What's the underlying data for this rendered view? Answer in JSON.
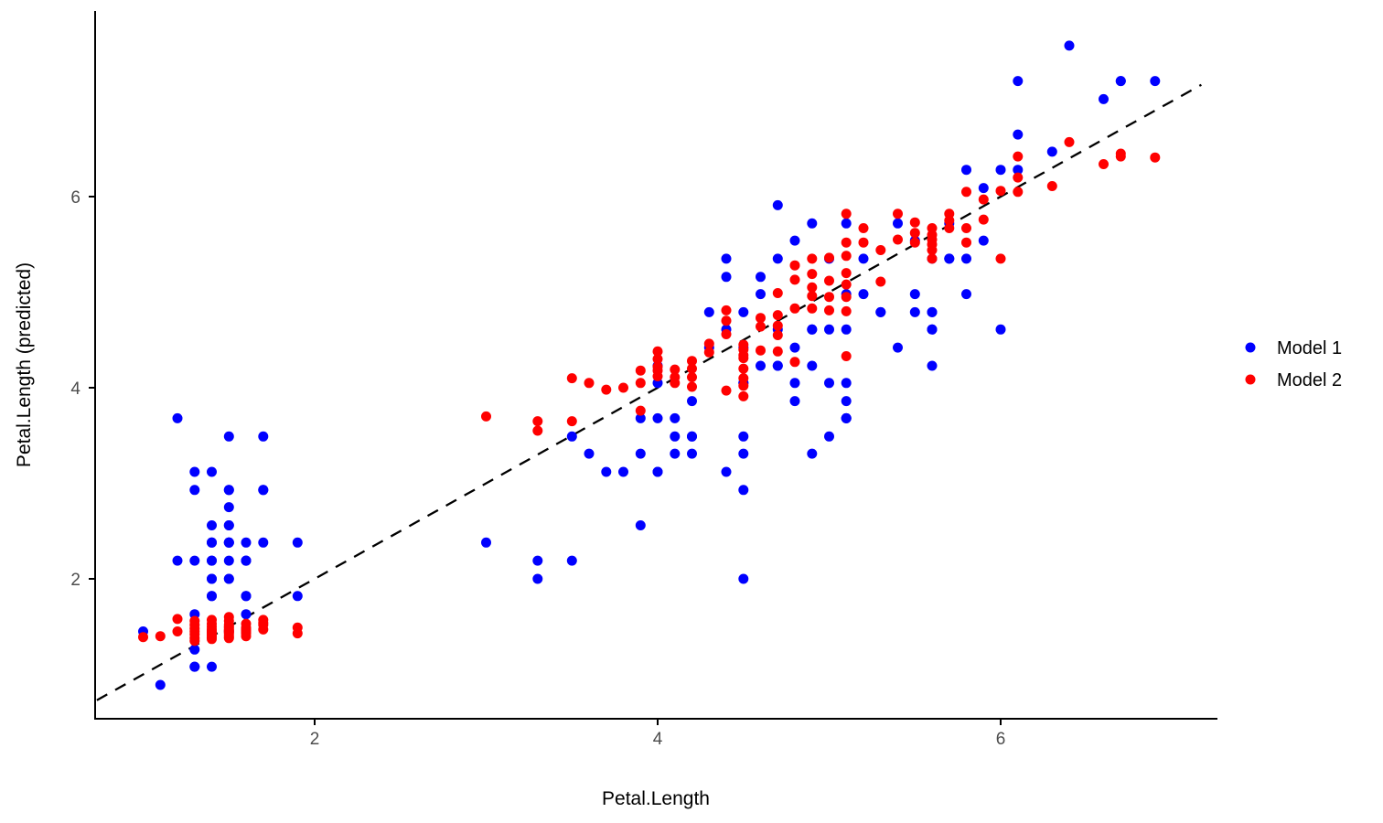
{
  "chart_data": {
    "type": "scatter",
    "title": "",
    "xlabel": "Petal.Length",
    "ylabel": "Petal.Length (predicted)",
    "x_ticks": [
      "2",
      "4",
      "6"
    ],
    "y_ticks": [
      "2",
      "4",
      "6"
    ],
    "x_tick_values": [
      2,
      4,
      6
    ],
    "y_tick_values": [
      2,
      4,
      6
    ],
    "xlim": [
      0.72,
      7.26
    ],
    "ylim": [
      0.55,
      7.95
    ],
    "grid": "off",
    "background": "#ffffff",
    "axis_color": "#000000",
    "tick_label_color": "#4d4d4d",
    "reference_line": {
      "equation": "y = x",
      "style": "dashed",
      "color": "#000000",
      "x_start": 0.73,
      "x_end": 7.17
    },
    "legend": {
      "position": "right",
      "entries": [
        {
          "label": "Model 1",
          "color": "#0000ff"
        },
        {
          "label": "Model 2",
          "color": "#ff0000"
        }
      ]
    },
    "series": [
      {
        "name": "Model 1",
        "color": "#0000ff",
        "points": [
          [
            1.4,
            2.38
          ],
          [
            1.4,
            2.0
          ],
          [
            1.3,
            1.63
          ],
          [
            1.5,
            1.45
          ],
          [
            1.4,
            2.19
          ],
          [
            1.7,
            2.93
          ],
          [
            1.4,
            1.45
          ],
          [
            1.5,
            2.19
          ],
          [
            1.4,
            1.08
          ],
          [
            1.5,
            2.0
          ],
          [
            1.5,
            2.93
          ],
          [
            1.6,
            1.82
          ],
          [
            1.4,
            1.82
          ],
          [
            1.1,
            0.89
          ],
          [
            1.2,
            3.68
          ],
          [
            1.5,
            3.49
          ],
          [
            1.3,
            2.93
          ],
          [
            1.4,
            2.38
          ],
          [
            1.7,
            3.49
          ],
          [
            1.5,
            2.38
          ],
          [
            1.7,
            2.93
          ],
          [
            1.5,
            2.38
          ],
          [
            1.0,
            1.45
          ],
          [
            1.7,
            2.38
          ],
          [
            1.9,
            1.82
          ],
          [
            1.6,
            2.19
          ],
          [
            1.6,
            2.19
          ],
          [
            1.5,
            2.56
          ],
          [
            1.4,
            2.56
          ],
          [
            1.6,
            1.63
          ],
          [
            1.6,
            1.82
          ],
          [
            1.5,
            2.93
          ],
          [
            1.5,
            2.56
          ],
          [
            1.4,
            3.12
          ],
          [
            1.5,
            2.0
          ],
          [
            1.2,
            2.19
          ],
          [
            1.3,
            3.12
          ],
          [
            1.4,
            2.0
          ],
          [
            1.3,
            1.08
          ],
          [
            1.5,
            2.38
          ],
          [
            1.3,
            2.19
          ],
          [
            1.3,
            1.26
          ],
          [
            1.3,
            1.08
          ],
          [
            1.6,
            2.19
          ],
          [
            1.9,
            2.38
          ],
          [
            1.4,
            1.82
          ],
          [
            1.6,
            2.38
          ],
          [
            1.4,
            1.45
          ],
          [
            1.5,
            2.75
          ],
          [
            1.4,
            2.19
          ],
          [
            4.7,
            5.91
          ],
          [
            4.5,
            4.79
          ],
          [
            4.9,
            5.72
          ],
          [
            4.0,
            3.12
          ],
          [
            4.6,
            4.98
          ],
          [
            4.5,
            3.49
          ],
          [
            4.7,
            4.61
          ],
          [
            3.3,
            2.0
          ],
          [
            4.6,
            5.16
          ],
          [
            3.9,
            2.56
          ],
          [
            3.5,
            2.19
          ],
          [
            4.2,
            3.86
          ],
          [
            4.0,
            4.05
          ],
          [
            4.7,
            4.23
          ],
          [
            3.6,
            3.31
          ],
          [
            4.4,
            5.35
          ],
          [
            4.5,
            3.31
          ],
          [
            4.1,
            3.68
          ],
          [
            4.5,
            4.42
          ],
          [
            3.9,
            3.31
          ],
          [
            4.8,
            3.86
          ],
          [
            4.0,
            4.23
          ],
          [
            4.9,
            4.61
          ],
          [
            4.7,
            4.23
          ],
          [
            4.3,
            4.79
          ],
          [
            4.4,
            5.16
          ],
          [
            4.8,
            5.54
          ],
          [
            5.0,
            5.35
          ],
          [
            4.5,
            4.05
          ],
          [
            3.5,
            3.49
          ],
          [
            3.8,
            3.12
          ],
          [
            3.7,
            3.12
          ],
          [
            3.9,
            3.68
          ],
          [
            5.1,
            4.05
          ],
          [
            4.5,
            2.93
          ],
          [
            4.5,
            4.05
          ],
          [
            4.7,
            5.35
          ],
          [
            4.4,
            4.61
          ],
          [
            4.1,
            3.31
          ],
          [
            4.0,
            3.12
          ],
          [
            4.4,
            3.12
          ],
          [
            4.6,
            4.23
          ],
          [
            4.0,
            3.68
          ],
          [
            3.3,
            2.19
          ],
          [
            4.2,
            3.31
          ],
          [
            4.2,
            3.49
          ],
          [
            4.2,
            3.49
          ],
          [
            4.3,
            4.42
          ],
          [
            3.0,
            2.38
          ],
          [
            4.1,
            3.49
          ],
          [
            6.0,
            4.61
          ],
          [
            5.1,
            3.68
          ],
          [
            5.9,
            6.09
          ],
          [
            5.6,
            4.61
          ],
          [
            5.8,
            4.98
          ],
          [
            6.6,
            7.02
          ],
          [
            4.5,
            2.0
          ],
          [
            6.3,
            6.47
          ],
          [
            5.8,
            5.35
          ],
          [
            6.1,
            6.28
          ],
          [
            5.1,
            4.98
          ],
          [
            5.3,
            4.79
          ],
          [
            5.5,
            5.54
          ],
          [
            5.0,
            3.49
          ],
          [
            5.1,
            3.68
          ],
          [
            5.3,
            4.79
          ],
          [
            5.5,
            4.98
          ],
          [
            6.7,
            7.21
          ],
          [
            6.9,
            7.21
          ],
          [
            5.0,
            4.05
          ],
          [
            5.7,
            5.72
          ],
          [
            4.9,
            3.31
          ],
          [
            6.7,
            7.21
          ],
          [
            4.9,
            4.61
          ],
          [
            5.7,
            5.35
          ],
          [
            6.0,
            6.28
          ],
          [
            4.8,
            4.42
          ],
          [
            4.9,
            4.23
          ],
          [
            5.6,
            4.79
          ],
          [
            5.8,
            6.28
          ],
          [
            6.1,
            6.65
          ],
          [
            6.4,
            7.58
          ],
          [
            5.6,
            4.79
          ],
          [
            5.1,
            4.61
          ],
          [
            5.6,
            4.23
          ],
          [
            6.1,
            7.21
          ],
          [
            5.6,
            4.61
          ],
          [
            5.5,
            4.79
          ],
          [
            4.8,
            4.05
          ],
          [
            5.4,
            5.72
          ],
          [
            5.6,
            5.35
          ],
          [
            5.1,
            5.72
          ],
          [
            5.1,
            3.68
          ],
          [
            5.9,
            5.54
          ],
          [
            5.7,
            5.35
          ],
          [
            5.2,
            5.35
          ],
          [
            5.0,
            4.61
          ],
          [
            5.2,
            4.98
          ],
          [
            5.4,
            4.42
          ],
          [
            5.1,
            3.86
          ]
        ]
      },
      {
        "name": "Model 2",
        "color": "#ff0000",
        "points": [
          [
            1.0,
            1.39
          ],
          [
            1.1,
            1.4
          ],
          [
            1.2,
            1.58
          ],
          [
            1.2,
            1.45
          ],
          [
            1.3,
            1.56
          ],
          [
            1.3,
            1.52
          ],
          [
            1.3,
            1.48
          ],
          [
            1.3,
            1.45
          ],
          [
            1.3,
            1.42
          ],
          [
            1.3,
            1.38
          ],
          [
            1.3,
            1.35
          ],
          [
            1.4,
            1.57
          ],
          [
            1.4,
            1.53
          ],
          [
            1.4,
            1.5
          ],
          [
            1.4,
            1.47
          ],
          [
            1.4,
            1.46
          ],
          [
            1.4,
            1.45
          ],
          [
            1.4,
            1.44
          ],
          [
            1.4,
            1.43
          ],
          [
            1.4,
            1.42
          ],
          [
            1.4,
            1.41
          ],
          [
            1.4,
            1.4
          ],
          [
            1.4,
            1.39
          ],
          [
            1.4,
            1.37
          ],
          [
            1.5,
            1.6
          ],
          [
            1.5,
            1.56
          ],
          [
            1.5,
            1.52
          ],
          [
            1.5,
            1.5
          ],
          [
            1.5,
            1.49
          ],
          [
            1.5,
            1.47
          ],
          [
            1.5,
            1.46
          ],
          [
            1.5,
            1.45
          ],
          [
            1.5,
            1.44
          ],
          [
            1.5,
            1.43
          ],
          [
            1.5,
            1.41
          ],
          [
            1.5,
            1.39
          ],
          [
            1.5,
            1.38
          ],
          [
            1.6,
            1.53
          ],
          [
            1.6,
            1.49
          ],
          [
            1.6,
            1.47
          ],
          [
            1.6,
            1.46
          ],
          [
            1.6,
            1.44
          ],
          [
            1.6,
            1.43
          ],
          [
            1.6,
            1.4
          ],
          [
            1.7,
            1.57
          ],
          [
            1.7,
            1.54
          ],
          [
            1.7,
            1.52
          ],
          [
            1.7,
            1.47
          ],
          [
            1.9,
            1.49
          ],
          [
            1.9,
            1.43
          ],
          [
            3.0,
            3.7
          ],
          [
            3.3,
            3.65
          ],
          [
            3.3,
            3.55
          ],
          [
            3.5,
            4.1
          ],
          [
            3.5,
            3.65
          ],
          [
            3.6,
            4.05
          ],
          [
            3.7,
            3.98
          ],
          [
            3.8,
            4.0
          ],
          [
            3.9,
            4.18
          ],
          [
            3.9,
            4.05
          ],
          [
            3.9,
            3.76
          ],
          [
            4.0,
            4.38
          ],
          [
            4.0,
            4.3
          ],
          [
            4.0,
            4.22
          ],
          [
            4.0,
            4.18
          ],
          [
            4.0,
            4.12
          ],
          [
            4.1,
            4.19
          ],
          [
            4.1,
            4.11
          ],
          [
            4.1,
            4.05
          ],
          [
            4.2,
            4.28
          ],
          [
            4.2,
            4.2
          ],
          [
            4.2,
            4.11
          ],
          [
            4.2,
            4.01
          ],
          [
            4.3,
            4.46
          ],
          [
            4.3,
            4.37
          ],
          [
            4.4,
            4.81
          ],
          [
            4.4,
            4.7
          ],
          [
            4.4,
            4.56
          ],
          [
            4.4,
            3.97
          ],
          [
            4.5,
            4.45
          ],
          [
            4.5,
            4.4
          ],
          [
            4.5,
            4.34
          ],
          [
            4.5,
            4.31
          ],
          [
            4.5,
            4.2
          ],
          [
            4.5,
            4.1
          ],
          [
            4.5,
            4.02
          ],
          [
            4.5,
            3.91
          ],
          [
            4.6,
            4.73
          ],
          [
            4.6,
            4.64
          ],
          [
            4.6,
            4.39
          ],
          [
            4.7,
            4.99
          ],
          [
            4.7,
            4.76
          ],
          [
            4.7,
            4.65
          ],
          [
            4.7,
            4.55
          ],
          [
            4.7,
            4.38
          ],
          [
            4.8,
            5.28
          ],
          [
            4.8,
            5.13
          ],
          [
            4.8,
            4.83
          ],
          [
            4.8,
            4.27
          ],
          [
            4.9,
            5.35
          ],
          [
            4.9,
            5.19
          ],
          [
            4.9,
            5.05
          ],
          [
            4.9,
            4.96
          ],
          [
            4.9,
            4.83
          ],
          [
            5.0,
            5.36
          ],
          [
            5.0,
            5.12
          ],
          [
            5.0,
            4.95
          ],
          [
            5.0,
            4.81
          ],
          [
            5.1,
            5.82
          ],
          [
            5.1,
            5.52
          ],
          [
            5.1,
            5.38
          ],
          [
            5.1,
            5.2
          ],
          [
            5.1,
            5.08
          ],
          [
            5.1,
            4.95
          ],
          [
            5.1,
            4.8
          ],
          [
            5.1,
            4.33
          ],
          [
            5.2,
            5.67
          ],
          [
            5.2,
            5.52
          ],
          [
            5.3,
            5.44
          ],
          [
            5.3,
            5.11
          ],
          [
            5.4,
            5.82
          ],
          [
            5.4,
            5.55
          ],
          [
            5.5,
            5.73
          ],
          [
            5.5,
            5.62
          ],
          [
            5.5,
            5.52
          ],
          [
            5.6,
            5.67
          ],
          [
            5.6,
            5.6
          ],
          [
            5.6,
            5.55
          ],
          [
            5.6,
            5.5
          ],
          [
            5.6,
            5.44
          ],
          [
            5.6,
            5.35
          ],
          [
            5.7,
            5.82
          ],
          [
            5.7,
            5.75
          ],
          [
            5.7,
            5.67
          ],
          [
            5.8,
            6.05
          ],
          [
            5.8,
            5.67
          ],
          [
            5.8,
            5.52
          ],
          [
            5.9,
            5.97
          ],
          [
            5.9,
            5.76
          ],
          [
            6.0,
            6.06
          ],
          [
            6.0,
            5.35
          ],
          [
            6.1,
            6.42
          ],
          [
            6.1,
            6.2
          ],
          [
            6.1,
            6.05
          ],
          [
            6.3,
            6.11
          ],
          [
            6.4,
            6.57
          ],
          [
            6.6,
            6.34
          ],
          [
            6.7,
            6.45
          ],
          [
            6.7,
            6.42
          ],
          [
            6.9,
            6.41
          ]
        ]
      }
    ]
  }
}
